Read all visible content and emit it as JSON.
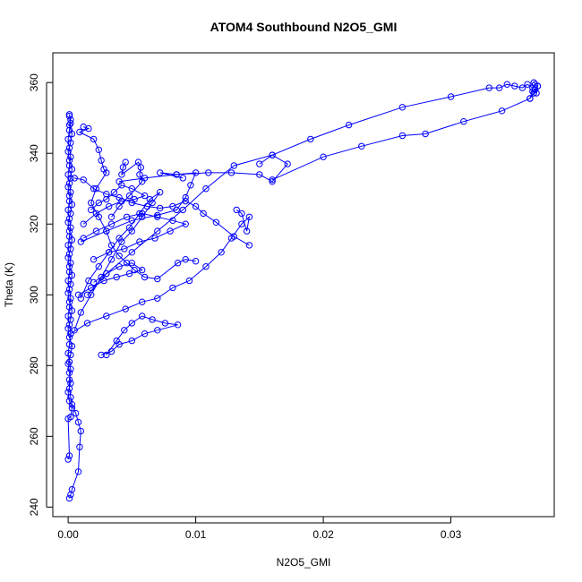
{
  "chart_data": {
    "type": "scatter",
    "title": "ATOM4 Southbound N2O5_GMI",
    "xlabel": "N2O5_GMI",
    "ylabel": "Theta (K)",
    "xlim": [
      -0.0012,
      0.0381
    ],
    "ylim": [
      237.3,
      368.4
    ],
    "x_ticks": [
      0.0,
      0.01,
      0.02,
      0.03
    ],
    "x_tick_labels": [
      "0.00",
      "0.01",
      "0.02",
      "0.03"
    ],
    "y_ticks": [
      240,
      260,
      280,
      300,
      320,
      340,
      360
    ],
    "y_tick_labels": [
      "240",
      "260",
      "280",
      "300",
      "320",
      "340",
      "360"
    ],
    "grid": false,
    "marker": "open-circle",
    "line_connected": true,
    "color": "#0000ff",
    "series": [
      {
        "points": [
          [
            0.0001,
            242.5
          ],
          [
            0.0002,
            243.5
          ],
          [
            0.0003,
            245.0
          ],
          [
            0.0008,
            250.0
          ],
          [
            0.0009,
            257.0
          ],
          [
            0.001,
            261.5
          ],
          [
            0.0008,
            264.0
          ],
          [
            0.0006,
            266.5
          ],
          [
            0.0003,
            269.0
          ],
          [
            0.0002,
            271.0
          ],
          [
            0.0001,
            273.5
          ],
          [
            0.0001,
            276.0
          ],
          [
            0.0002,
            279.0
          ],
          [
            0.0001,
            281.0
          ],
          [
            0.0,
            283.5
          ],
          [
            0.0001,
            286.0
          ],
          [
            0.0002,
            289.0
          ],
          [
            0.0001,
            291.5
          ],
          [
            0.0,
            294.0
          ],
          [
            0.0001,
            296.5
          ],
          [
            0.0002,
            299.0
          ],
          [
            0.0001,
            301.5
          ],
          [
            0.0,
            304.0
          ],
          [
            0.0001,
            306.5
          ],
          [
            0.0002,
            309.0
          ],
          [
            0.0001,
            311.5
          ],
          [
            0.0,
            314.0
          ],
          [
            0.0001,
            316.5
          ],
          [
            0.0002,
            319.0
          ],
          [
            0.0001,
            321.5
          ],
          [
            0.0,
            324.0
          ],
          [
            0.0001,
            326.5
          ],
          [
            0.0002,
            329.0
          ],
          [
            0.0001,
            331.5
          ],
          [
            0.0,
            334.0
          ],
          [
            0.0001,
            336.5
          ],
          [
            0.0002,
            339.0
          ],
          [
            0.0001,
            341.5
          ],
          [
            0.0,
            344.0
          ],
          [
            0.0001,
            346.5
          ],
          [
            0.0002,
            348.5
          ],
          [
            0.0001,
            350.5
          ]
        ]
      },
      {
        "points": [
          [
            0.0,
            253.5
          ],
          [
            0.0001,
            254.5
          ],
          [
            0.0,
            265.0
          ],
          [
            0.0002,
            265.5
          ],
          [
            0.0003,
            268.0
          ],
          [
            0.0001,
            270.0
          ],
          [
            0.0,
            272.5
          ],
          [
            0.0002,
            275.0
          ],
          [
            0.0001,
            278.0
          ],
          [
            0.0,
            280.5
          ],
          [
            0.0002,
            283.0
          ],
          [
            0.0003,
            285.5
          ],
          [
            0.0001,
            288.0
          ],
          [
            0.0,
            290.5
          ],
          [
            0.0002,
            293.0
          ],
          [
            0.0003,
            295.5
          ],
          [
            0.0001,
            298.0
          ],
          [
            0.0,
            300.5
          ],
          [
            0.0002,
            303.0
          ],
          [
            0.0003,
            305.5
          ],
          [
            0.0001,
            308.0
          ],
          [
            0.0,
            310.5
          ],
          [
            0.0002,
            313.0
          ],
          [
            0.0003,
            315.5
          ],
          [
            0.0001,
            318.0
          ],
          [
            0.0,
            320.5
          ],
          [
            0.0002,
            323.0
          ],
          [
            0.0003,
            325.5
          ],
          [
            0.0001,
            328.0
          ],
          [
            0.0,
            330.5
          ],
          [
            0.0002,
            333.0
          ],
          [
            0.0003,
            335.5
          ],
          [
            0.0001,
            338.0
          ],
          [
            0.0,
            340.5
          ],
          [
            0.0002,
            343.0
          ],
          [
            0.0003,
            345.5
          ],
          [
            0.0001,
            348.0
          ],
          [
            0.0002,
            349.5
          ],
          [
            0.0001,
            351.0
          ]
        ]
      },
      {
        "points": [
          [
            0.0012,
            347.5
          ],
          [
            0.0016,
            347.0
          ],
          [
            0.0009,
            346.0
          ],
          [
            0.002,
            344.0
          ],
          [
            0.0024,
            341.0
          ],
          [
            0.0026,
            338.0
          ],
          [
            0.0028,
            335.5
          ],
          [
            0.003,
            334.5
          ],
          [
            0.0022,
            330.0
          ],
          [
            0.0018,
            326.0
          ],
          [
            0.0024,
            322.0
          ],
          [
            0.003,
            318.0
          ],
          [
            0.0034,
            314.0
          ],
          [
            0.004,
            311.0
          ],
          [
            0.0046,
            309.0
          ],
          [
            0.0052,
            307.0
          ],
          [
            0.006,
            305.0
          ],
          [
            0.007,
            304.5
          ],
          [
            0.0086,
            309.0
          ],
          [
            0.0092,
            310.0
          ],
          [
            0.01,
            309.5
          ]
        ]
      },
      {
        "points": [
          [
            0.0005,
            333.0
          ],
          [
            0.0012,
            332.5
          ],
          [
            0.002,
            330.0
          ],
          [
            0.003,
            328.5
          ],
          [
            0.004,
            327.5
          ],
          [
            0.005,
            326.0
          ],
          [
            0.0062,
            325.0
          ],
          [
            0.0072,
            324.5
          ],
          [
            0.0082,
            325.0
          ],
          [
            0.0092,
            326.5
          ],
          [
            0.01,
            325.0
          ],
          [
            0.0106,
            323.0
          ],
          [
            0.0116,
            320.5
          ],
          [
            0.013,
            316.5
          ],
          [
            0.0142,
            314.0
          ]
        ]
      },
      {
        "points": [
          [
            0.001,
            315.0
          ],
          [
            0.003,
            318.0
          ],
          [
            0.005,
            321.0
          ],
          [
            0.007,
            322.5
          ],
          [
            0.0085,
            324.0
          ],
          [
            0.0092,
            327.5
          ],
          [
            0.0096,
            331.0
          ],
          [
            0.01,
            334.5
          ],
          [
            0.0085,
            334.0
          ],
          [
            0.0072,
            334.5
          ],
          [
            0.009,
            333.0
          ]
        ]
      },
      {
        "points": [
          [
            0.004,
            332.0
          ],
          [
            0.006,
            333.0
          ],
          [
            0.0085,
            334.0
          ],
          [
            0.011,
            334.5
          ],
          [
            0.0128,
            334.5
          ],
          [
            0.015,
            334.0
          ],
          [
            0.016,
            332.0
          ],
          [
            0.0172,
            337.0
          ],
          [
            0.016,
            339.5
          ],
          [
            0.013,
            336.5
          ],
          [
            0.0108,
            330.0
          ],
          [
            0.009,
            324.0
          ],
          [
            0.007,
            318.0
          ],
          [
            0.005,
            312.0
          ],
          [
            0.003,
            306.0
          ],
          [
            0.0015,
            300.0
          ]
        ]
      },
      {
        "points": [
          [
            0.0002,
            289.0
          ],
          [
            0.0015,
            292.0
          ],
          [
            0.003,
            294.0
          ],
          [
            0.0045,
            296.0
          ],
          [
            0.0058,
            298.0
          ],
          [
            0.007,
            299.0
          ],
          [
            0.0082,
            302.0
          ],
          [
            0.0095,
            304.0
          ],
          [
            0.0108,
            308.0
          ],
          [
            0.012,
            312.0
          ],
          [
            0.0128,
            316.0
          ],
          [
            0.0136,
            320.0
          ],
          [
            0.0142,
            322.0
          ],
          [
            0.014,
            318.0
          ],
          [
            0.0136,
            323.0
          ],
          [
            0.0132,
            324.0
          ]
        ]
      },
      {
        "points": [
          [
            0.003,
            283.0
          ],
          [
            0.0038,
            287.0
          ],
          [
            0.0044,
            290.0
          ],
          [
            0.005,
            292.0
          ],
          [
            0.0058,
            294.0
          ],
          [
            0.0066,
            293.0
          ],
          [
            0.0076,
            292.0
          ],
          [
            0.0086,
            291.5
          ],
          [
            0.007,
            290.0
          ],
          [
            0.006,
            289.0
          ],
          [
            0.005,
            287.0
          ],
          [
            0.004,
            286.0
          ],
          [
            0.0034,
            284.0
          ],
          [
            0.0026,
            283.0
          ]
        ]
      },
      {
        "points": [
          [
            0.0005,
            290.0
          ],
          [
            0.001,
            295.0
          ],
          [
            0.0018,
            300.0
          ],
          [
            0.0026,
            305.0
          ],
          [
            0.0034,
            310.0
          ],
          [
            0.0042,
            315.0
          ],
          [
            0.005,
            318.0
          ],
          [
            0.0058,
            322.0
          ],
          [
            0.0066,
            326.0
          ],
          [
            0.0072,
            329.0
          ],
          [
            0.0064,
            327.0
          ],
          [
            0.0056,
            323.0
          ],
          [
            0.0048,
            319.0
          ],
          [
            0.004,
            316.0
          ],
          [
            0.0032,
            312.0
          ],
          [
            0.0024,
            308.0
          ],
          [
            0.0016,
            304.0
          ],
          [
            0.001,
            299.0
          ]
        ]
      },
      {
        "points": [
          [
            0.0012,
            320.0
          ],
          [
            0.0022,
            323.0
          ],
          [
            0.0032,
            325.0
          ],
          [
            0.0042,
            326.5
          ],
          [
            0.0052,
            327.0
          ],
          [
            0.006,
            328.0
          ],
          [
            0.005,
            330.0
          ],
          [
            0.0042,
            331.0
          ],
          [
            0.0036,
            329.0
          ],
          [
            0.003,
            327.0
          ],
          [
            0.0024,
            326.0
          ],
          [
            0.0018,
            324.0
          ]
        ]
      },
      {
        "points": [
          [
            0.002,
            310.0
          ],
          [
            0.0032,
            312.0
          ],
          [
            0.0044,
            313.0
          ],
          [
            0.0056,
            315.0
          ],
          [
            0.0068,
            316.0
          ],
          [
            0.008,
            318.0
          ],
          [
            0.0092,
            320.0
          ],
          [
            0.0082,
            321.0
          ],
          [
            0.007,
            322.0
          ],
          [
            0.0058,
            323.0
          ],
          [
            0.0046,
            322.0
          ],
          [
            0.0034,
            320.0
          ],
          [
            0.0022,
            318.0
          ],
          [
            0.0012,
            316.0
          ]
        ]
      },
      {
        "points": [
          [
            0.0008,
            300.0
          ],
          [
            0.0018,
            302.0
          ],
          [
            0.0028,
            304.0
          ],
          [
            0.0038,
            305.0
          ],
          [
            0.0048,
            306.0
          ],
          [
            0.0058,
            307.0
          ],
          [
            0.005,
            309.0
          ],
          [
            0.004,
            308.0
          ],
          [
            0.003,
            306.0
          ],
          [
            0.002,
            303.5
          ]
        ]
      },
      {
        "points": [
          [
            0.0045,
            337.5
          ],
          [
            0.0043,
            336.0
          ],
          [
            0.0042,
            334.0
          ],
          [
            0.0055,
            337.5
          ],
          [
            0.0057,
            336.0
          ],
          [
            0.0056,
            334.0
          ],
          [
            0.0058,
            332.0
          ],
          [
            0.0048,
            328.0
          ],
          [
            0.004,
            325.0
          ],
          [
            0.0034,
            322.0
          ]
        ]
      },
      {
        "points": [
          [
            0.016,
            332.5
          ],
          [
            0.02,
            339.0
          ],
          [
            0.023,
            342.0
          ],
          [
            0.0262,
            345.0
          ],
          [
            0.028,
            345.5
          ],
          [
            0.031,
            349.0
          ],
          [
            0.034,
            352.0
          ],
          [
            0.0362,
            355.5
          ],
          [
            0.0365,
            357.0
          ],
          [
            0.0368,
            359.0
          ],
          [
            0.0366,
            359.5
          ],
          [
            0.0364,
            358.5
          ],
          [
            0.036,
            359.5
          ],
          [
            0.0356,
            358.5
          ],
          [
            0.035,
            359.0
          ],
          [
            0.0344,
            359.5
          ],
          [
            0.0338,
            358.5
          ],
          [
            0.033,
            358.5
          ],
          [
            0.03,
            356.0
          ],
          [
            0.0262,
            353.0
          ],
          [
            0.022,
            348.0
          ],
          [
            0.019,
            344.0
          ],
          [
            0.016,
            339.5
          ],
          [
            0.015,
            337.0
          ]
        ]
      },
      {
        "points": [
          [
            0.0362,
            355.5
          ],
          [
            0.0364,
            357.5
          ],
          [
            0.0366,
            358.0
          ],
          [
            0.0367,
            357.0
          ],
          [
            0.0368,
            359.0
          ],
          [
            0.0365,
            360.0
          ]
        ]
      }
    ]
  }
}
